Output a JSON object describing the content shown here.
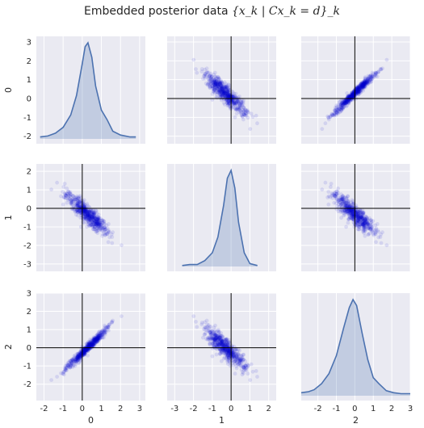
{
  "title_prefix": "Embedded posterior data",
  "title_math": "{x_k | Cx_k = d}_k",
  "colors": {
    "panel_bg": "#EAEAF2",
    "grid": "#FFFFFF",
    "scatter": "#0000CC",
    "kde_line": "#4C72B0",
    "kde_fill": "#4C72B0",
    "crosshair": "#000000"
  },
  "chart_data": {
    "type": "scatter",
    "layout": "pairplot-3x3",
    "variables": [
      "0",
      "1",
      "2"
    ],
    "axis_labels": {
      "rows": [
        "0",
        "1",
        "2"
      ],
      "cols": [
        "0",
        "1",
        "2"
      ]
    },
    "limits": {
      "0": [
        -2.4,
        3.3
      ],
      "1": [
        -3.4,
        2.4
      ],
      "2": [
        -2.9,
        3.0
      ]
    },
    "ticks": {
      "0": [
        -2,
        -1,
        0,
        1,
        2,
        3
      ],
      "1": [
        -3,
        -2,
        -1,
        0,
        1,
        2
      ],
      "2": [
        -2,
        -1,
        0,
        1,
        2,
        3
      ]
    },
    "grid": true,
    "crosshair_at": [
      0,
      0
    ],
    "scatter_alpha": 0.1,
    "n_points": 600,
    "correlations": {
      "0_1": -0.9,
      "0_2": 0.98,
      "1_2": -0.95
    },
    "marginals": {
      "0": {
        "x": [
          -2.2,
          -1.8,
          -1.4,
          -1.0,
          -0.6,
          -0.3,
          0.0,
          0.15,
          0.3,
          0.5,
          0.7,
          1.0,
          1.3,
          1.6,
          2.0,
          2.5,
          2.8
        ],
        "density": [
          0.02,
          0.03,
          0.06,
          0.12,
          0.25,
          0.45,
          0.78,
          0.96,
          1.0,
          0.85,
          0.55,
          0.3,
          0.2,
          0.08,
          0.04,
          0.02,
          0.02
        ]
      },
      "1": {
        "x": [
          -2.6,
          -2.2,
          -1.8,
          -1.4,
          -1.0,
          -0.7,
          -0.4,
          -0.2,
          0.0,
          0.2,
          0.4,
          0.7,
          1.0,
          1.4
        ],
        "density": [
          0.01,
          0.02,
          0.02,
          0.06,
          0.14,
          0.3,
          0.62,
          0.9,
          0.98,
          0.8,
          0.45,
          0.14,
          0.03,
          0.01
        ]
      },
      "2": {
        "x": [
          -2.9,
          -2.5,
          -2.2,
          -1.8,
          -1.4,
          -1.0,
          -0.6,
          -0.3,
          -0.1,
          0.1,
          0.4,
          0.7,
          1.0,
          1.3,
          1.7,
          2.1,
          2.5,
          3.0
        ],
        "density": [
          0.03,
          0.04,
          0.06,
          0.12,
          0.22,
          0.4,
          0.68,
          0.88,
          0.96,
          0.9,
          0.62,
          0.36,
          0.18,
          0.12,
          0.05,
          0.03,
          0.02,
          0.02
        ]
      }
    }
  }
}
